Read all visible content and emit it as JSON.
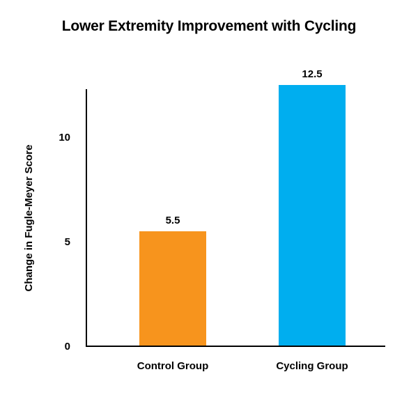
{
  "chart_data": {
    "type": "bar",
    "title": "Lower Extremity Improvement with Cycling",
    "xlabel": "",
    "ylabel": "Change in Fugle-Meyer Score",
    "categories": [
      "Control Group",
      "Cycling Group"
    ],
    "values": [
      5.5,
      12.5
    ],
    "data_labels": [
      "5.5",
      "12.5"
    ],
    "bar_colors": [
      "#F7941D",
      "#00AEEF"
    ],
    "yticks": [
      0,
      5,
      10
    ],
    "ytick_labels": [
      "0",
      "5",
      "10"
    ],
    "ylim": [
      0,
      12.3
    ],
    "grid": false,
    "legend": "none"
  }
}
